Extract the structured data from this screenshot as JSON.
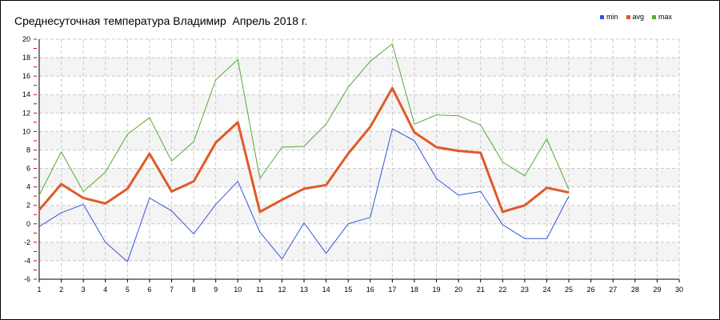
{
  "chart_data": {
    "type": "line",
    "title": "Среднесуточная температура Владимир  Апрель 2018 г.",
    "xlabel": "",
    "ylabel": "",
    "x": [
      1,
      2,
      3,
      4,
      5,
      6,
      7,
      8,
      9,
      10,
      11,
      12,
      13,
      14,
      15,
      16,
      17,
      18,
      19,
      20,
      21,
      22,
      23,
      24,
      25
    ],
    "xticks": [
      1,
      2,
      3,
      4,
      5,
      6,
      7,
      8,
      9,
      10,
      11,
      12,
      13,
      14,
      15,
      16,
      17,
      18,
      19,
      20,
      21,
      22,
      23,
      24,
      25,
      26,
      27,
      28,
      29,
      30
    ],
    "yticks": [
      -6,
      -4,
      -2,
      0,
      2,
      4,
      6,
      8,
      10,
      12,
      14,
      16,
      18,
      20
    ],
    "xlim": [
      1,
      30
    ],
    "ylim": [
      -6,
      20
    ],
    "grid": true,
    "legend_position": "top-right",
    "series": [
      {
        "name": "min",
        "color": "#3355dd",
        "values": [
          -0.3,
          1.2,
          2.1,
          -2.0,
          -4.1,
          2.8,
          1.4,
          -1.1,
          2.1,
          4.6,
          -0.9,
          -3.8,
          0.1,
          -3.2,
          0.0,
          0.7,
          10.3,
          9.0,
          4.9,
          3.1,
          3.5,
          -0.1,
          -1.6,
          -1.6,
          3.0
        ]
      },
      {
        "name": "avg",
        "color": "#e05a28",
        "values": [
          1.5,
          4.3,
          2.8,
          2.2,
          3.8,
          7.6,
          3.5,
          4.6,
          8.8,
          11.0,
          1.3,
          2.6,
          3.8,
          4.2,
          7.6,
          10.5,
          14.7,
          9.9,
          8.3,
          7.9,
          7.7,
          1.3,
          2.0,
          3.9,
          3.4
        ]
      },
      {
        "name": "max",
        "color": "#55aa33",
        "values": [
          3.1,
          7.8,
          3.5,
          5.6,
          9.7,
          11.5,
          6.8,
          8.9,
          15.6,
          17.8,
          4.9,
          8.3,
          8.4,
          10.8,
          14.8,
          17.6,
          19.5,
          10.8,
          11.8,
          11.7,
          10.7,
          6.7,
          5.2,
          9.2,
          3.7
        ]
      }
    ]
  }
}
